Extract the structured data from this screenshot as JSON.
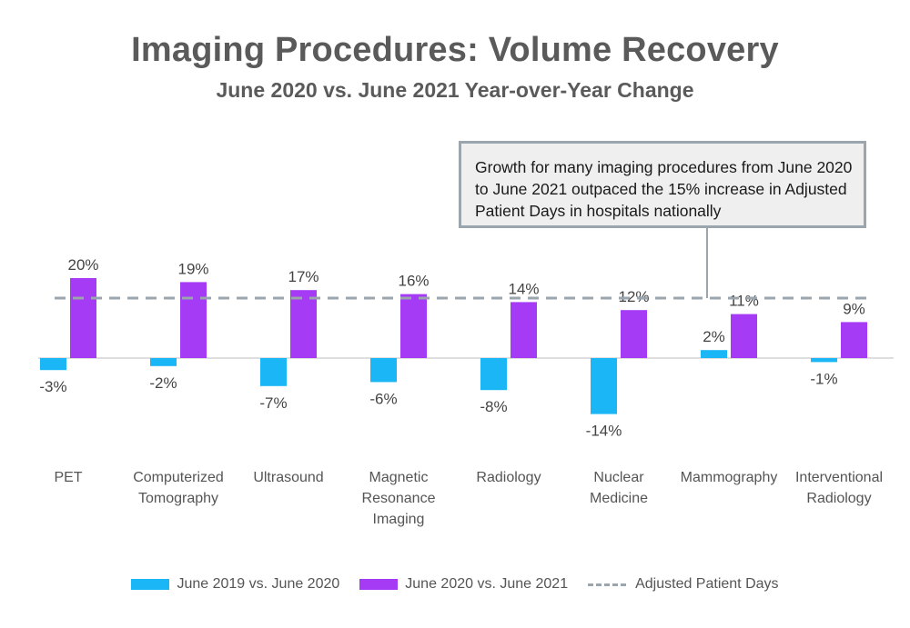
{
  "chart_data": {
    "type": "bar",
    "title": "Imaging Procedures: Volume Recovery",
    "subtitle": "June 2020 vs. June 2021 Year-over-Year Change",
    "categories": [
      [
        "PET"
      ],
      [
        "Computerized",
        "Tomography"
      ],
      [
        "Ultrasound"
      ],
      [
        "Magnetic",
        "Resonance",
        "Imaging"
      ],
      [
        "Radiology"
      ],
      [
        "Nuclear",
        "Medicine"
      ],
      [
        "Mammography"
      ],
      [
        "Interventional",
        "Radiology"
      ]
    ],
    "series": [
      {
        "name": "June 2019 vs. June 2020",
        "color": "#1ab6f5",
        "values": [
          -3,
          -2,
          -7,
          -6,
          -8,
          -14,
          2,
          -1
        ],
        "labels": [
          "-3%",
          "-2%",
          "-7%",
          "-6%",
          "-8%",
          "-14%",
          "2%",
          "-1%"
        ]
      },
      {
        "name": "June 2020 vs. June 2021",
        "color": "#a53bf5",
        "values": [
          20,
          19,
          17,
          16,
          14,
          12,
          11,
          9
        ],
        "labels": [
          "20%",
          "19%",
          "17%",
          "16%",
          "14%",
          "12%",
          "11%",
          "9%"
        ]
      }
    ],
    "reference_line": {
      "name": "Adjusted Patient Days",
      "value": 15,
      "color": "#9aa5ad",
      "style": "dashed"
    },
    "annotation": "Growth for many imaging procedures from June 2020 to June 2021 outpaced the 15% increase in Adjusted Patient Days in hospitals nationally",
    "ylim": [
      -16,
      22
    ],
    "legend_position": "bottom"
  }
}
